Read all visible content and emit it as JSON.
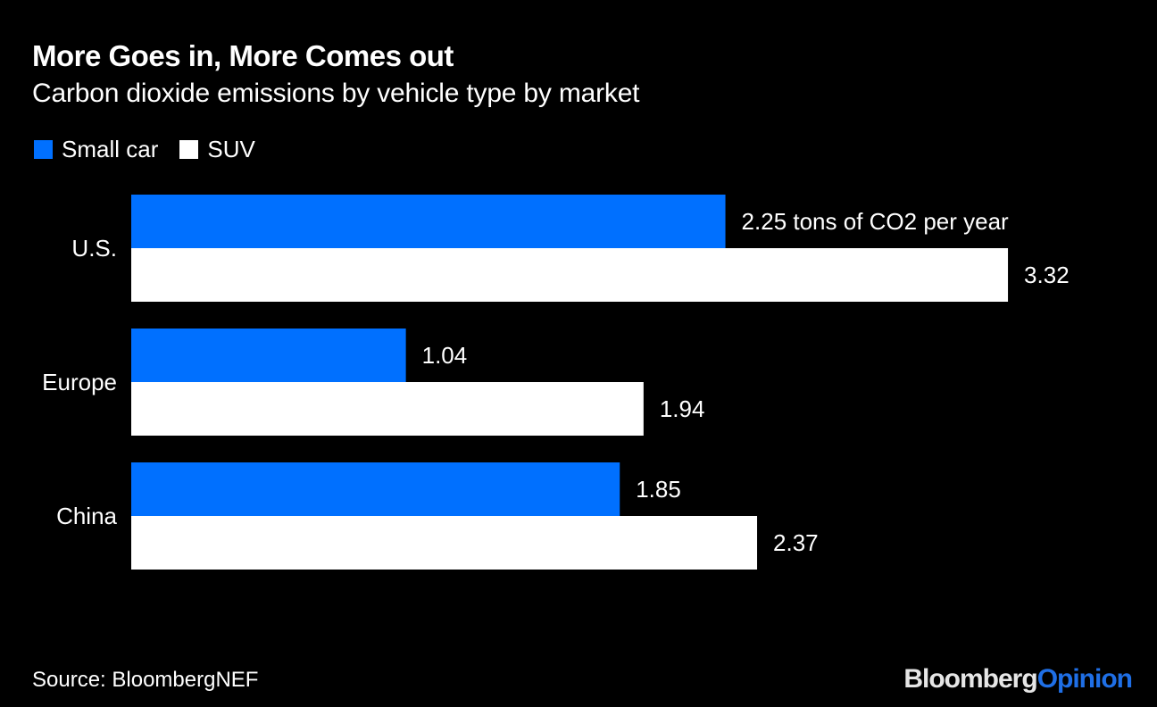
{
  "header": {
    "title": "More Goes in, More Comes out",
    "subtitle": "Carbon dioxide emissions by vehicle type by market"
  },
  "legend": [
    {
      "label": "Small car",
      "color": "#0070ff"
    },
    {
      "label": "SUV",
      "color": "#ffffff"
    }
  ],
  "footer": {
    "source": "Source: BloombergNEF",
    "logo_part1": "Bloomberg",
    "logo_part2": "Opinion"
  },
  "chart_data": {
    "type": "bar",
    "orientation": "horizontal",
    "title": "More Goes in, More Comes out",
    "subtitle": "Carbon dioxide emissions by vehicle type by market",
    "categories": [
      "U.S.",
      "Europe",
      "China"
    ],
    "series": [
      {
        "name": "Small car",
        "color": "#0070ff",
        "values": [
          2.25,
          1.04,
          1.85
        ]
      },
      {
        "name": "SUV",
        "color": "#ffffff",
        "values": [
          3.32,
          1.94,
          2.37
        ]
      }
    ],
    "data_labels": [
      [
        "2.25 tons of CO2 per year",
        "3.32"
      ],
      [
        "1.04",
        "1.94"
      ],
      [
        "1.85",
        "2.37"
      ]
    ],
    "unit": "tons of CO2 per year",
    "xlim": [
      0,
      3.32
    ],
    "grid": false,
    "legend_position": "top-left",
    "source": "Source: BloombergNEF"
  }
}
